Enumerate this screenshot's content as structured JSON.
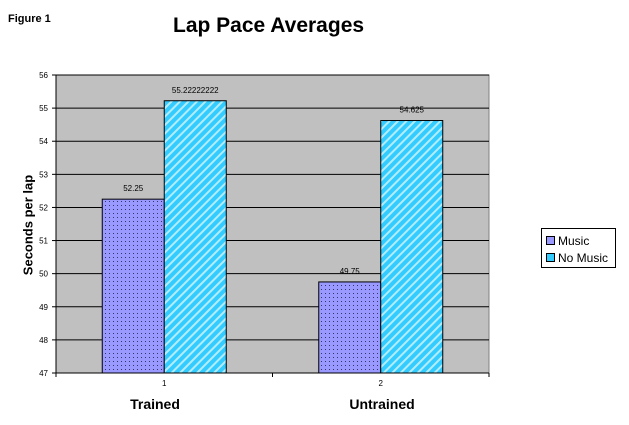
{
  "figure_label": "Figure 1",
  "chart_data": {
    "type": "bar",
    "title": "Lap Pace Averages",
    "xlabel": "",
    "ylabel": "Seconds per lap",
    "categories": [
      "1",
      "2"
    ],
    "category_labels": [
      "Trained",
      "Untrained"
    ],
    "ylim": [
      47,
      56
    ],
    "yticks": [
      "47",
      "48",
      "49",
      "50",
      "51",
      "52",
      "53",
      "54",
      "55",
      "56"
    ],
    "series": [
      {
        "name": "Music",
        "values": [
          52.25,
          49.75
        ],
        "data_labels": [
          "52.25",
          "49.75"
        ],
        "color": "#9999ff"
      },
      {
        "name": "No Music",
        "values": [
          55.22222222,
          54.625
        ],
        "data_labels": [
          "55.22222222",
          "54.625"
        ],
        "color": "#33ccff"
      }
    ],
    "plot_background": "#c0c0c0",
    "grid": true,
    "legend_position": "right"
  }
}
